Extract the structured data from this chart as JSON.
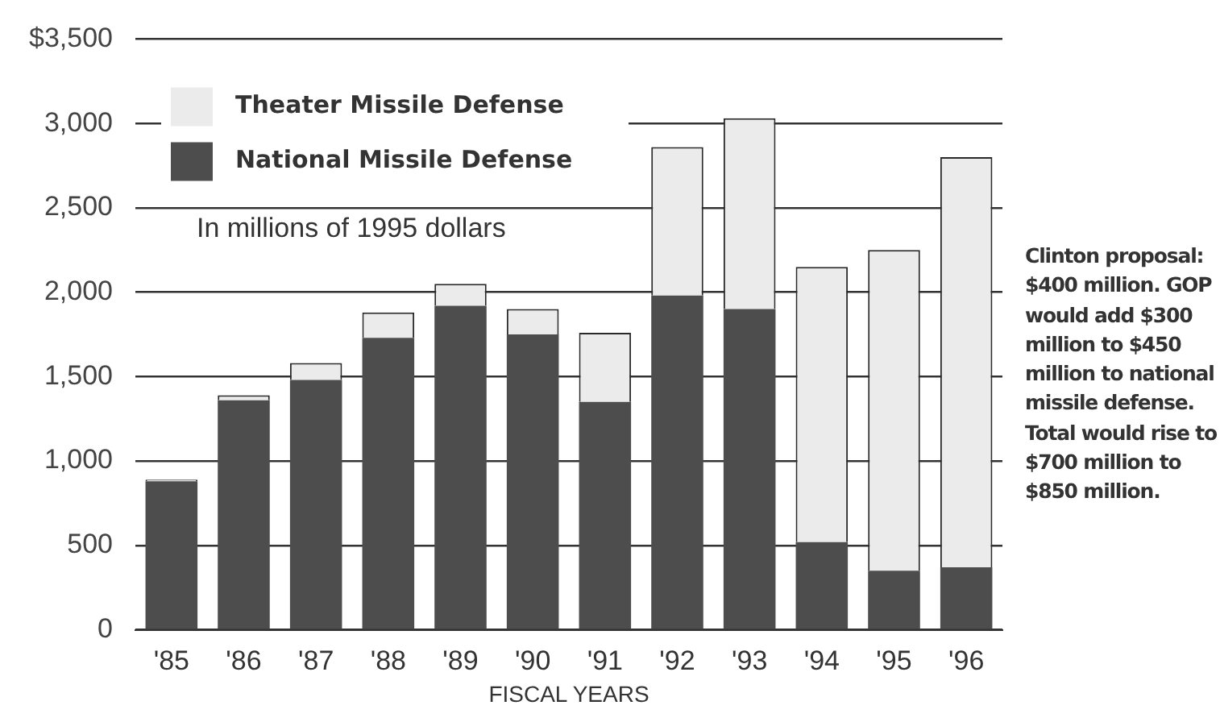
{
  "chart_data": {
    "type": "bar",
    "subtitle": "In millions of 1995 dollars",
    "xlabel": "FISCAL YEARS",
    "categories": [
      "'85",
      "'86",
      "'87",
      "'88",
      "'89",
      "'90",
      "'91",
      "'92",
      "'93",
      "'94",
      "'95",
      "'96"
    ],
    "stacked": true,
    "series": [
      {
        "name": "National Missile Defense",
        "color": "#4d4d4d",
        "values": [
          880,
          1360,
          1480,
          1730,
          1920,
          1750,
          1350,
          1980,
          1900,
          520,
          350,
          370
        ]
      },
      {
        "name": "Theater Missile Defense",
        "color": "#ebebeb",
        "values": [
          10,
          30,
          100,
          150,
          130,
          150,
          410,
          880,
          1130,
          1630,
          1900,
          2430
        ]
      }
    ],
    "ylim": [
      0,
      3500
    ],
    "yticks": [
      0,
      500,
      {
        "value": 1000,
        "label": "1,000"
      },
      {
        "value": 1500,
        "label": "1,500"
      },
      {
        "value": 2000,
        "label": "2,000"
      },
      {
        "value": 2500,
        "label": "2,500"
      },
      {
        "value": 3000,
        "label": "3,000"
      },
      {
        "value": 3500,
        "label": "$3,500"
      }
    ],
    "grid": "y",
    "legend": "top left",
    "annotations": [
      "Clinton proposal: $400 million. GOP would add $300 million to $450 million to national missile defense. Total would rise to $700 million to $850 million."
    ]
  }
}
